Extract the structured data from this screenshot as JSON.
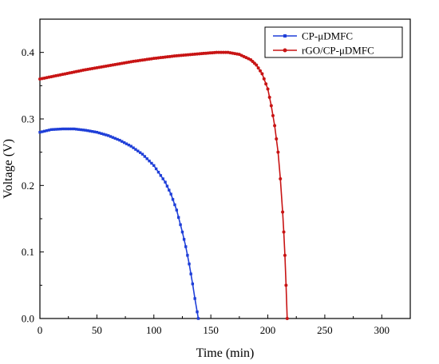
{
  "chart_data": {
    "type": "line",
    "xlabel": "Time (min)",
    "ylabel": "Voltage (V)",
    "xlim": [
      0,
      325
    ],
    "ylim": [
      0,
      0.45
    ],
    "xticks": [
      0,
      50,
      100,
      150,
      200,
      250,
      300
    ],
    "yticks": [
      0.0,
      0.1,
      0.2,
      0.3,
      0.4
    ],
    "xtick_labels": [
      "0",
      "50",
      "100",
      "150",
      "200",
      "250",
      "300"
    ],
    "ytick_labels": [
      "0.0",
      "0.1",
      "0.2",
      "0.3",
      "0.4"
    ],
    "grid": false,
    "legend_position": "top-right",
    "series": [
      {
        "name": "CP-μDMFC",
        "color": "#1f3fd8",
        "marker": "square",
        "x": [
          0,
          10,
          20,
          30,
          40,
          50,
          60,
          70,
          80,
          90,
          100,
          110,
          115,
          120,
          125,
          128,
          131,
          134,
          136,
          138,
          139
        ],
        "y": [
          0.28,
          0.284,
          0.285,
          0.285,
          0.283,
          0.28,
          0.275,
          0.268,
          0.259,
          0.247,
          0.23,
          0.205,
          0.187,
          0.163,
          0.13,
          0.108,
          0.082,
          0.052,
          0.03,
          0.01,
          0.0
        ]
      },
      {
        "name": "rGO/CP-μDMFC",
        "color": "#c81414",
        "marker": "circle",
        "x": [
          0,
          20,
          40,
          60,
          80,
          100,
          120,
          140,
          155,
          165,
          175,
          185,
          190,
          195,
          200,
          203,
          206,
          209,
          211,
          213,
          214,
          215,
          216,
          217
        ],
        "y": [
          0.36,
          0.367,
          0.374,
          0.38,
          0.386,
          0.391,
          0.395,
          0.398,
          0.4,
          0.4,
          0.397,
          0.389,
          0.381,
          0.368,
          0.345,
          0.32,
          0.29,
          0.25,
          0.21,
          0.16,
          0.13,
          0.095,
          0.05,
          0.0
        ]
      }
    ]
  }
}
